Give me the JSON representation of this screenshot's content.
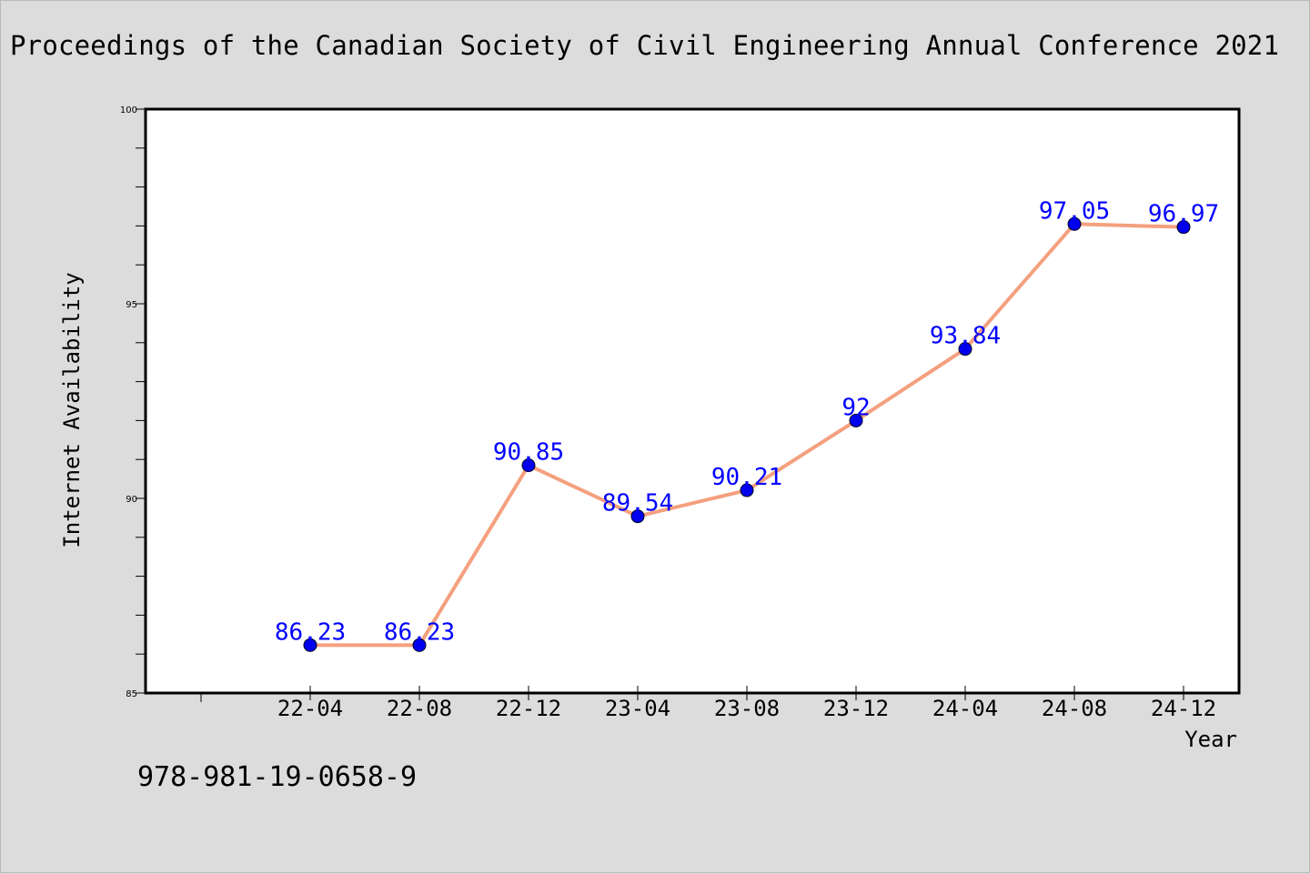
{
  "title": "Proceedings of the Canadian Society of Civil Engineering Annual Conference 2021",
  "isbn": "978-981-19-0658-9",
  "colors": {
    "line": "#f4a07e",
    "marker": "#0000ee",
    "label": "#0000ff",
    "background": "#dcdcdc",
    "plot_area": "#ffffff"
  },
  "chart_data": {
    "type": "line",
    "title": "",
    "xlabel": "Year",
    "ylabel": "Internet Availability",
    "categories": [
      "22-04",
      "22-08",
      "22-12",
      "23-04",
      "23-08",
      "23-12",
      "24-04",
      "24-08",
      "24-12"
    ],
    "values": [
      86.23,
      86.23,
      90.85,
      89.54,
      90.21,
      92,
      93.84,
      97.05,
      96.97
    ],
    "data_labels": [
      "86.23",
      "86.23",
      "90.85",
      "89.54",
      "90.21",
      "92",
      "93.84",
      "97.05",
      "96.97"
    ],
    "ylim": [
      85,
      100
    ],
    "yticks": [
      "85",
      "90",
      "95",
      "100"
    ],
    "grid": false,
    "legend": "none"
  }
}
